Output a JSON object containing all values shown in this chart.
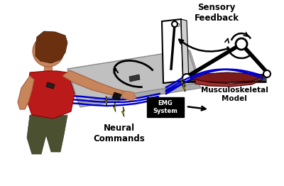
{
  "background_color": "#ffffff",
  "labels": {
    "sensory_feedback": "Sensory\nFeedback",
    "neural_commands": "Neural\nCommands",
    "emg_system": "EMG\nSystem",
    "musculoskeletal_model": "Musculoskeletal\nModel"
  },
  "figsize": [
    4.0,
    2.62
  ],
  "dpi": 100,
  "wire_color": "#0000cc",
  "bone_color": "#111111",
  "muscle_color1": "#7a1a1a",
  "muscle_color2": "#a03030",
  "bolt_color": "#ffee00",
  "emg_box_color": "#000000",
  "emg_text_color": "#ffffff",
  "tablet_color": "#c0c0c0",
  "tablet_edge_color": "#909090",
  "screen_color": "#f0f0f0",
  "person_skin": "#c8845a",
  "person_hair": "#6b3010",
  "person_shirt": "#bb1a1a",
  "person_pants": "#4a5030"
}
